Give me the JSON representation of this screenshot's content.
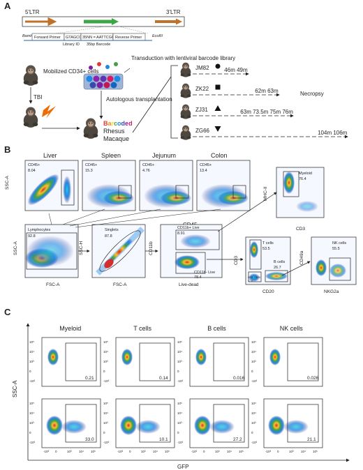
{
  "panel_a": {
    "letter": "A",
    "ltr5": "5'LTR",
    "ltr3": "3'LTR",
    "bamhi": "BamHI",
    "ecori": "EcoRI",
    "forward_primer": "Forward Primer",
    "gtagcc": "GTAGCC",
    "barcode_seq": "35NN = AATTCGG",
    "reverse_primer": "Reverse Primer",
    "library_id": "Library ID",
    "barcode_len": "35bp Barcode",
    "mobilized": "Mobilized CD34+ cells",
    "transduction": "Transduction with lentiviral barcode library",
    "autologous": "Autologous transplantation",
    "tbi": "TBI",
    "barcoded_letters": [
      "B",
      "a",
      "r",
      "c",
      "o",
      "d",
      "e",
      "d"
    ],
    "barcoded_colors": [
      "#e53935",
      "#fb8c00",
      "#fdd835",
      "#43a047",
      "#1e88e5",
      "#3949ab",
      "#8e24aa",
      "#d81b60"
    ],
    "rhesus": "Rhesus",
    "macaque": "Macaque",
    "necropsy": "Necropsy",
    "animals": [
      {
        "id": "JM82",
        "symbol": "circle",
        "times": "46m 49m"
      },
      {
        "id": "ZK22",
        "symbol": "square",
        "times": "62m 63m"
      },
      {
        "id": "ZJ31",
        "symbol": "triangle-up",
        "times": "63m 73.5m 75m 76m"
      },
      {
        "id": "ZG66",
        "symbol": "triangle-down",
        "times": "104m 106m"
      }
    ]
  },
  "panel_b": {
    "letter": "B",
    "tissues": [
      "Liver",
      "Spleen",
      "Jejunum",
      "Colon"
    ],
    "cd45_gates": [
      {
        "label": "CD45+",
        "value": "8.04"
      },
      {
        "label": "CD45+",
        "value": "15.3"
      },
      {
        "label": "CD45+",
        "value": "4.76"
      },
      {
        "label": "CD45+",
        "value": "13.4"
      }
    ],
    "ssc_a": "SSC-A",
    "cd45": "CD45",
    "fsc_a": "FSC-A",
    "ssc_h": "SSC-H",
    "lymphocytes": {
      "label": "Lymphocytes",
      "value": "92.8"
    },
    "singlets": {
      "label": "Singlets",
      "value": "87.8"
    },
    "cd11b_live": {
      "label": "CD11b+ Live",
      "value": "8.91"
    },
    "cd11b_neg_live": {
      "label": "CD11b- Live",
      "value": "78.4"
    },
    "cd11b": "CD11b",
    "live_dead": "Live-dead",
    "myeloid": {
      "label": "Myeloid",
      "value": "76.4"
    },
    "mhc_ii": "MHC-II",
    "cd3": "CD3",
    "t_cells": {
      "label": "T cells",
      "value": "53.5"
    },
    "b_cells": {
      "label": "B cells",
      "value": "26.7"
    },
    "cd20_neg": {
      "label": "CD3- CD20-",
      "value": "17.6"
    },
    "cd20": "CD20",
    "nk_cells": {
      "label": "NK cells",
      "value": "55.5"
    },
    "cd49a": "CD49a",
    "nkg2a": "NKG2a",
    "fsc_ticks": [
      "50K",
      "100K",
      "150K",
      "200K",
      "250K"
    ],
    "ssc_ticks": [
      "50K",
      "100K",
      "150K",
      "200K",
      "250K"
    ]
  },
  "panel_c": {
    "letter": "C",
    "columns": [
      "Myeloid",
      "T cells",
      "B cells",
      "NK cells"
    ],
    "row1_values": [
      "0.21",
      "0.14",
      "0.016",
      "0.026"
    ],
    "row2_values": [
      "33.0",
      "10.1",
      "27.2",
      "21.1"
    ],
    "y_axis": "SSC-A",
    "x_axis": "GFP",
    "y_ticks": [
      "10⁵",
      "10⁴",
      "10³",
      "0",
      "-10³"
    ],
    "x_ticks": [
      "-10³",
      "0",
      "10³",
      "10⁴",
      "10⁵"
    ]
  }
}
